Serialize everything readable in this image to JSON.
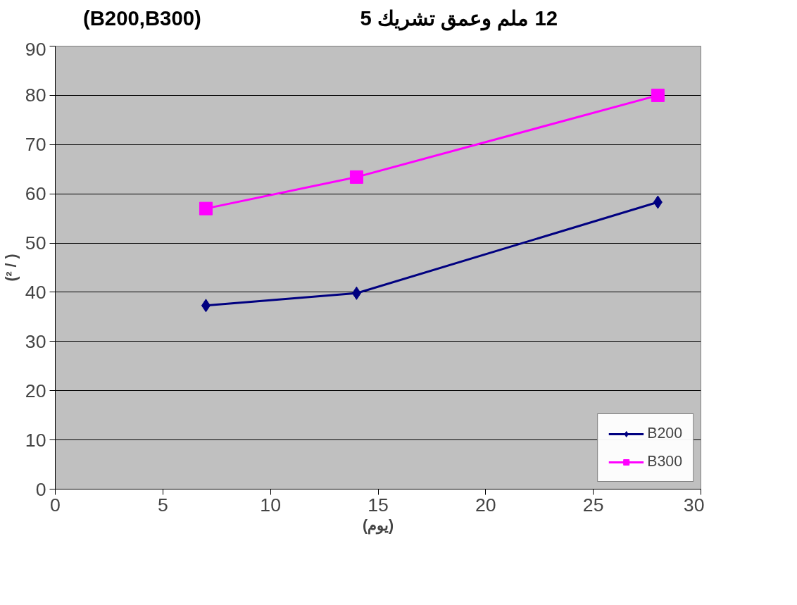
{
  "chart_data": {
    "type": "line",
    "title": "12 ملم وعمق تشريك 5",
    "subtitle": "(B200,B300)",
    "xlabel": "(يوم)",
    "ylabel": "(² / )",
    "x": [
      7,
      14,
      28
    ],
    "series": [
      {
        "name": "B200",
        "color": "#000080",
        "values": [
          37.3,
          39.8,
          58.3
        ],
        "marker": "diamond"
      },
      {
        "name": "B300",
        "color": "#ff00ff",
        "values": [
          57,
          63.4,
          80
        ],
        "marker": "square"
      }
    ],
    "xlim": [
      0,
      30
    ],
    "xticks": [
      0,
      5,
      10,
      15,
      20,
      25,
      30
    ],
    "ylim": [
      0,
      90
    ],
    "yticks": [
      0,
      10,
      20,
      30,
      40,
      50,
      60,
      70,
      80,
      90
    ],
    "grid": "y",
    "legend": "bottom right",
    "line_style": "solid"
  }
}
